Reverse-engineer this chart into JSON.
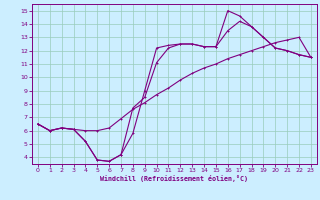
{
  "xlabel": "Windchill (Refroidissement éolien,°C)",
  "bg_color": "#cceeff",
  "line_color": "#800080",
  "grid_color": "#99ccbb",
  "xlim": [
    -0.5,
    23.5
  ],
  "ylim": [
    3.5,
    15.5
  ],
  "xticks": [
    0,
    1,
    2,
    3,
    4,
    5,
    6,
    7,
    8,
    9,
    10,
    11,
    12,
    13,
    14,
    15,
    16,
    17,
    18,
    19,
    20,
    21,
    22,
    23
  ],
  "yticks": [
    4,
    5,
    6,
    7,
    8,
    9,
    10,
    11,
    12,
    13,
    14,
    15
  ],
  "line1_x": [
    0,
    1,
    2,
    3,
    4,
    5,
    6,
    7,
    8,
    9,
    10,
    11,
    12,
    13,
    14,
    15,
    16,
    17,
    18,
    19,
    20,
    21,
    22,
    23
  ],
  "line1_y": [
    6.5,
    6.0,
    6.2,
    6.1,
    5.2,
    3.8,
    3.7,
    4.2,
    7.7,
    8.5,
    11.1,
    12.2,
    12.5,
    12.5,
    12.3,
    12.3,
    15.0,
    14.6,
    13.8,
    13.0,
    12.2,
    12.0,
    11.7,
    11.5
  ],
  "line2_x": [
    0,
    1,
    2,
    3,
    4,
    5,
    6,
    7,
    8,
    9,
    10,
    11,
    12,
    13,
    14,
    15,
    16,
    17,
    18,
    19,
    20,
    21,
    22,
    23
  ],
  "line2_y": [
    6.5,
    6.0,
    6.2,
    6.1,
    5.2,
    3.8,
    3.7,
    4.2,
    5.8,
    9.0,
    12.2,
    12.4,
    12.5,
    12.5,
    12.3,
    12.3,
    13.5,
    14.2,
    13.8,
    13.0,
    12.2,
    12.0,
    11.7,
    11.5
  ],
  "line3_x": [
    0,
    1,
    2,
    3,
    4,
    5,
    6,
    7,
    8,
    9,
    10,
    11,
    12,
    13,
    14,
    15,
    16,
    17,
    18,
    19,
    20,
    21,
    22,
    23
  ],
  "line3_y": [
    6.5,
    6.0,
    6.2,
    6.1,
    6.0,
    6.0,
    6.2,
    6.9,
    7.6,
    8.1,
    8.7,
    9.2,
    9.8,
    10.3,
    10.7,
    11.0,
    11.4,
    11.7,
    12.0,
    12.3,
    12.6,
    12.8,
    13.0,
    11.5
  ]
}
